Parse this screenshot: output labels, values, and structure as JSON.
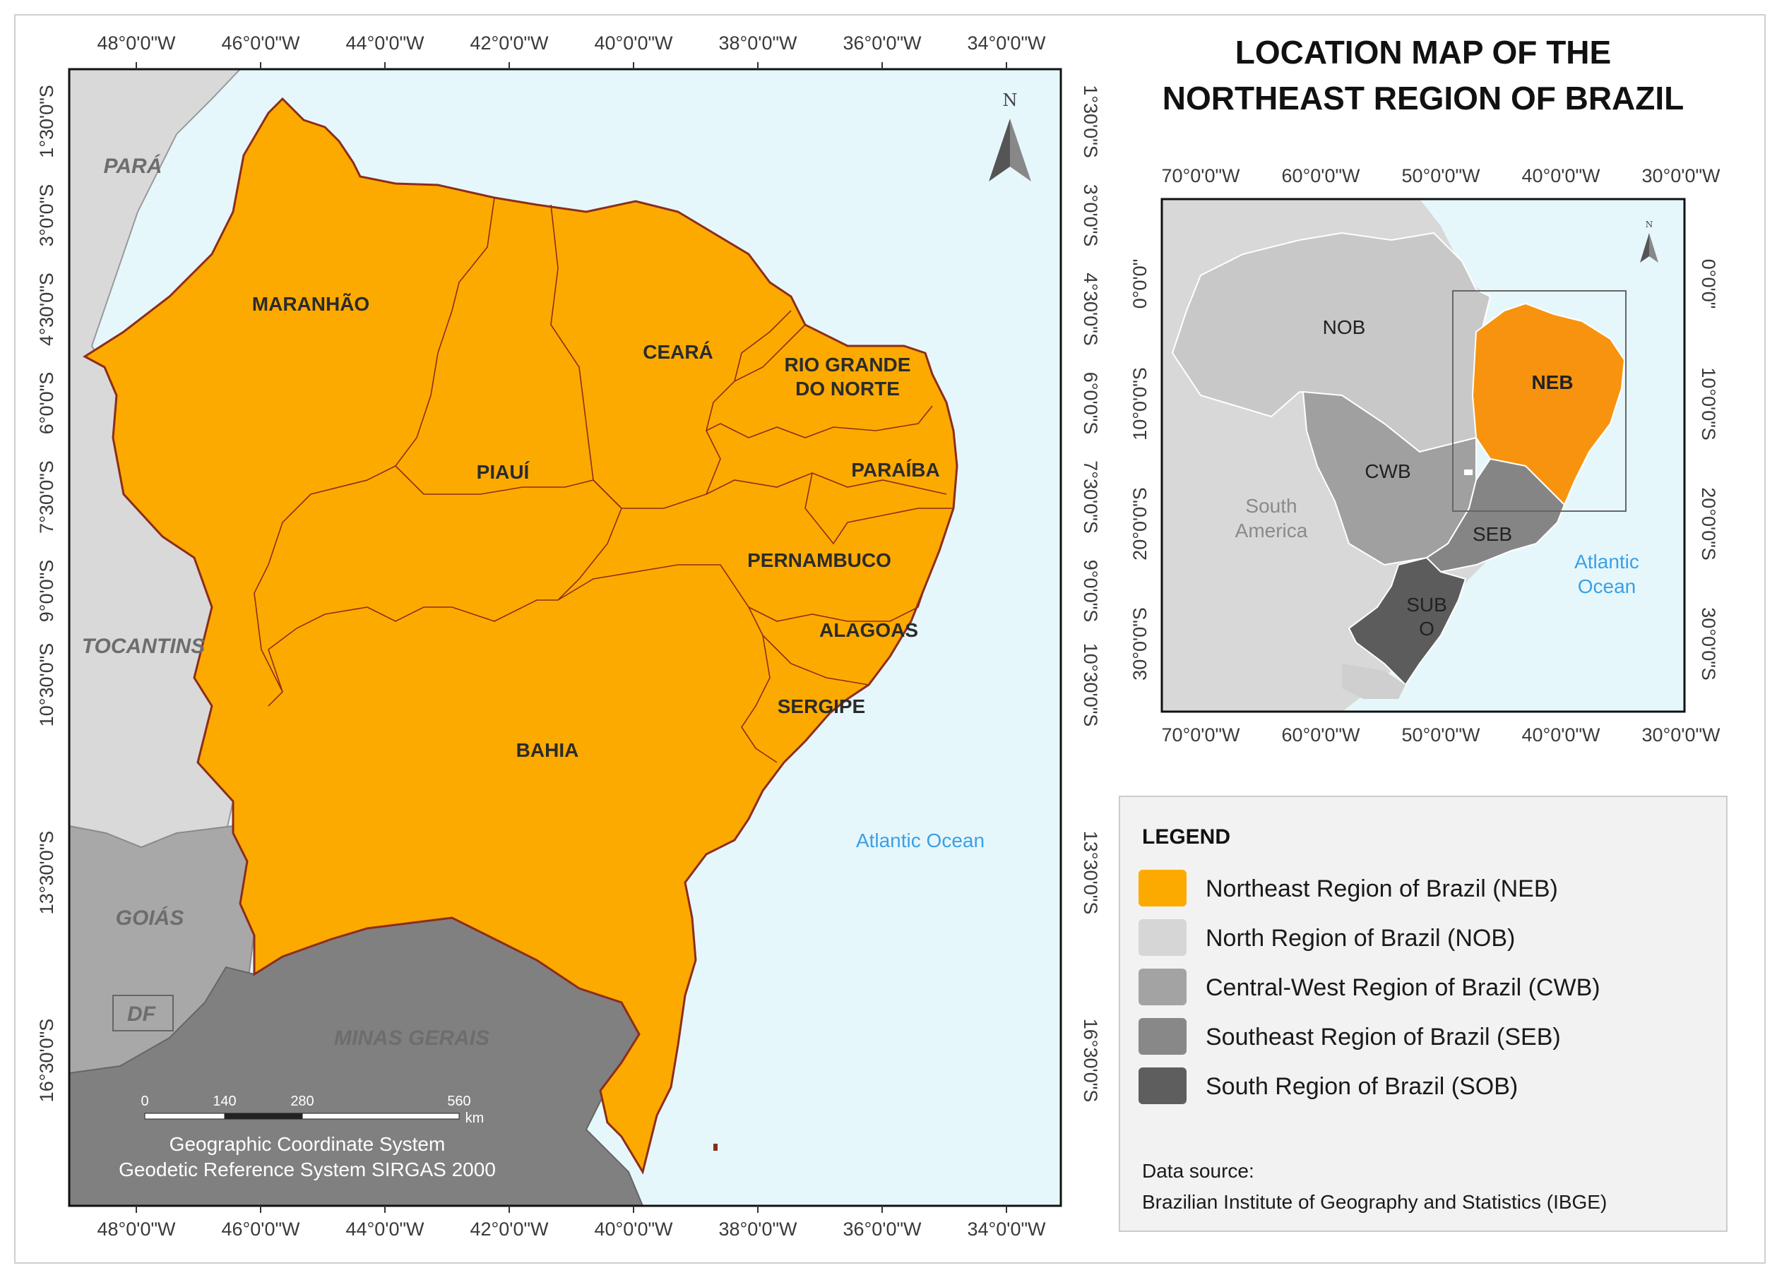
{
  "title_lines": [
    "LOCATION MAP OF THE",
    "NORTHEAST REGION OF BRAZIL"
  ],
  "main_map": {
    "longitude_labels": [
      "48°0'0\"W",
      "46°0'0\"W",
      "44°0'0\"W",
      "42°0'0\"W",
      "40°0'0\"W",
      "38°0'0\"W",
      "36°0'0\"W",
      "34°0'0\"W"
    ],
    "latitude_labels": [
      "1°30'0\"S",
      "3°0'0\"S",
      "4°30'0\"S",
      "6°0'0\"S",
      "7°30'0\"S",
      "9°0'0\"S",
      "10°30'0\"S",
      "13°30'0\"S",
      "16°30'0\"S"
    ],
    "states": {
      "maranhao": "MARANHÃO",
      "piaui": "PIAUÍ",
      "ceara": "CEARÁ",
      "rio_grande_do_norte_1": "RIO GRANDE",
      "rio_grande_do_norte_2": "DO NORTE",
      "paraiba": "PARAÍBA",
      "pernambuco": "PERNAMBUCO",
      "alagoas": "ALAGOAS",
      "sergipe": "SERGIPE",
      "bahia": "BAHIA"
    },
    "neighbors": {
      "para": "PARÁ",
      "tocantins": "TOCANTINS",
      "goias": "GOIÁS",
      "df": "DF",
      "minas_gerais": "MINAS GERAIS"
    },
    "ocean_label": "Atlantic Ocean",
    "north_label": "N",
    "scale": {
      "ticks": [
        "0",
        "140",
        "280",
        "560"
      ],
      "unit": "km"
    },
    "caption_lines": [
      "Geographic Coordinate System",
      "Geodetic Reference System SIRGAS 2000"
    ]
  },
  "inset_map": {
    "longitude_labels": [
      "70°0'0\"W",
      "60°0'0\"W",
      "50°0'0\"W",
      "40°0'0\"W",
      "30°0'0\"W"
    ],
    "latitude_labels": [
      "0°0'0\"",
      "10°0'0\"S",
      "20°0'0\"S",
      "30°0'0\"S"
    ],
    "regions": {
      "nob": "NOB",
      "neb": "NEB",
      "cwb": "CWB",
      "seb": "SEB",
      "sob_1": "SUB",
      "sob_2": "O"
    },
    "continent_label_lines": [
      "South",
      "America"
    ],
    "ocean_label_lines": [
      "Atlantic",
      "Ocean"
    ],
    "north_label": "N"
  },
  "legend": {
    "title": "LEGEND",
    "items": [
      {
        "label": "Northeast Region of Brazil (NEB)",
        "color": "#fcaa00"
      },
      {
        "label": "North Region of Brazil (NOB)",
        "color": "#d6d6d6"
      },
      {
        "label": "Central-West Region of Brazil (CWB)",
        "color": "#a3a3a3"
      },
      {
        "label": "Southeast Region of Brazil (SEB)",
        "color": "#888888"
      },
      {
        "label": "South Region of Brazil (SOB)",
        "color": "#5e5e5e"
      }
    ],
    "source_title": "Data source:",
    "source_text": "Brazilian Institute of Geography and Statistics (IBGE)"
  },
  "colors": {
    "ocean": "#e6f7fc",
    "neb": "#fcaa00",
    "neb_inset": "#f7930f",
    "nob": "#d6d6d6",
    "cwb": "#a3a3a3",
    "seb": "#888888",
    "sob": "#5e5e5e",
    "border": "#8c2d1c"
  }
}
